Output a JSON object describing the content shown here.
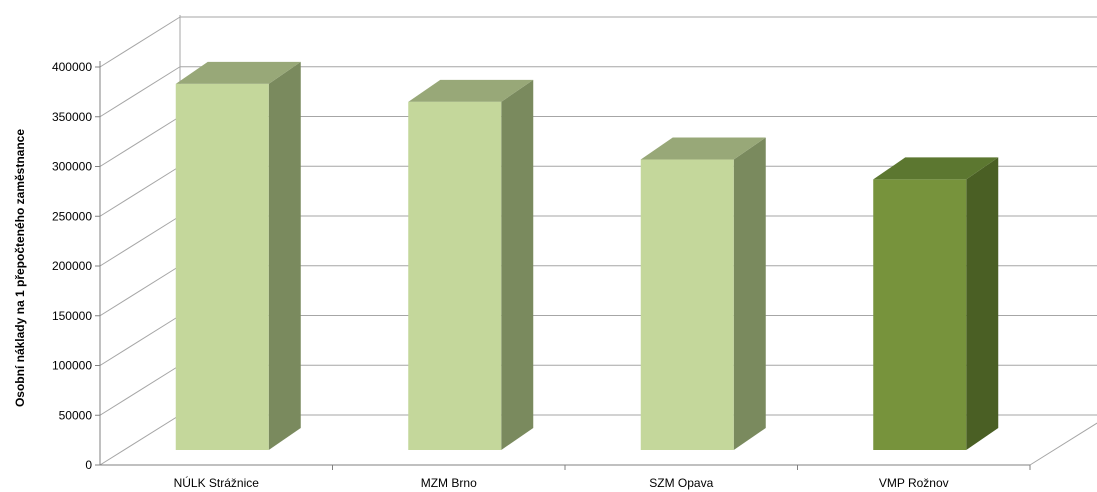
{
  "chart_data": {
    "type": "bar",
    "title": "",
    "xlabel": "",
    "ylabel": "Osobní náklady  na 1 přepočteného zaměstnance",
    "categories": [
      "NÚLK Strážnice",
      "MZM Brno",
      "SZM Opava",
      "VMP Rožnov"
    ],
    "values": [
      383000,
      365000,
      307000,
      287000
    ],
    "ylim": [
      0,
      400000
    ],
    "y_ticks": [
      "0",
      "50000",
      "100000",
      "150000",
      "200000",
      "250000",
      "300000",
      "350000",
      "400000"
    ],
    "grid": true,
    "legend": "none",
    "style": "3d-column",
    "colors": {
      "default": {
        "front": "#c4d79b",
        "top": "#98a878",
        "side": "#7a8a5e"
      },
      "highlight": {
        "front": "#77933c",
        "top": "#5c7730",
        "side": "#4a5f24"
      },
      "highlight_index": 3,
      "grid": "#a6a6a6",
      "axis": "#808080"
    }
  }
}
